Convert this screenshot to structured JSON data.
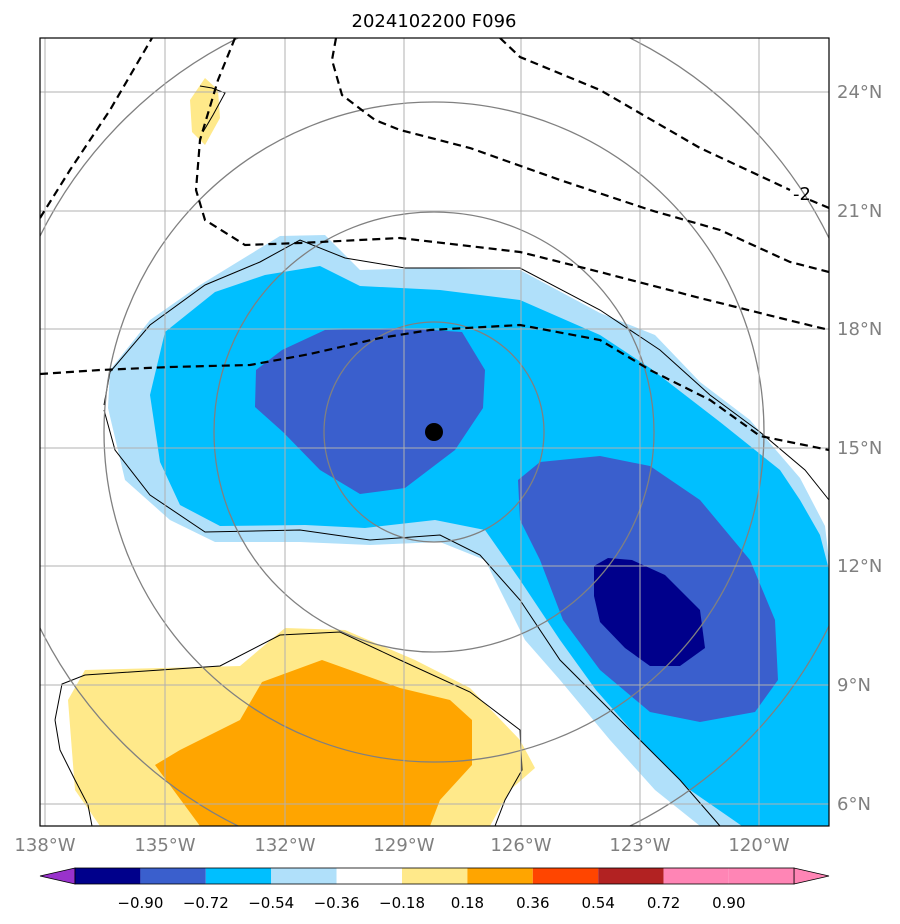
{
  "title": "2024102200 F096",
  "latitude_labels": [
    "24°N",
    "21°N",
    "18°N",
    "15°N",
    "12°N",
    "9°N",
    "6°N"
  ],
  "longitude_labels": [
    "138°W",
    "135°W",
    "132°W",
    "129°W",
    "126°W",
    "123°W",
    "120°W"
  ],
  "contour_label": "-2",
  "colorbar": {
    "ticks": [
      "−0.90",
      "−0.72",
      "−0.54",
      "−0.36",
      "−0.18",
      "0.18",
      "0.36",
      "0.54",
      "0.72",
      "0.90"
    ],
    "colors": [
      "#9932cc",
      "#00008b",
      "#3a5fcd",
      "#00bfff",
      "#b0e0fa",
      "#ffffff",
      "#ffe98a",
      "#ffa500",
      "#ff4500",
      "#b22222",
      "#ff85b5"
    ]
  },
  "center_marker": {
    "lat": 15.4,
    "lon": -128.2
  }
}
